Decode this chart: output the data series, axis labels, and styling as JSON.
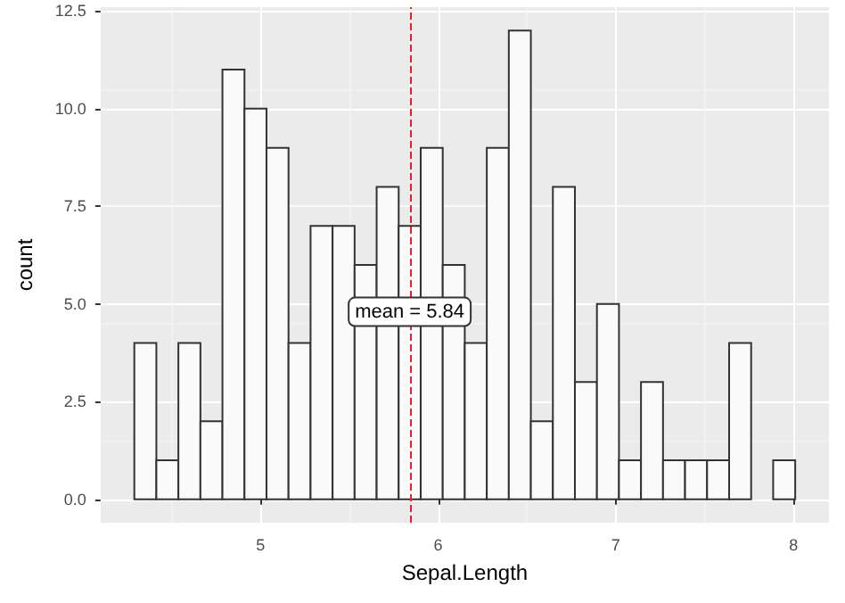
{
  "chart_data": {
    "type": "histogram",
    "xlabel": "Sepal.Length",
    "ylabel": "count",
    "bins": [
      4.29,
      4.414,
      4.538,
      4.662,
      4.786,
      4.91,
      5.034,
      5.158,
      5.282,
      5.406,
      5.53,
      5.654,
      5.778,
      5.902,
      6.026,
      6.15,
      6.274,
      6.398,
      6.522,
      6.646,
      6.77,
      6.894,
      7.018,
      7.142,
      7.266,
      7.39,
      7.514,
      7.638,
      7.762,
      7.886,
      8.01
    ],
    "values": [
      4,
      1,
      4,
      2,
      11,
      10,
      9,
      4,
      7,
      7,
      6,
      8,
      7,
      9,
      6,
      4,
      9,
      12,
      2,
      8,
      3,
      5,
      1,
      3,
      1,
      1,
      1,
      4,
      0,
      1
    ],
    "color": "#fafafa",
    "xlim": [
      4.1,
      8.2
    ],
    "xticks": [
      5,
      6,
      7,
      8
    ],
    "ylim": [
      -0.6,
      12.6
    ],
    "yticks": [
      {
        "value": 0,
        "label": "0.0"
      },
      {
        "value": 2.5,
        "label": "2.5"
      },
      {
        "value": 5,
        "label": "5.0"
      },
      {
        "value": 7.5,
        "label": "7.5"
      },
      {
        "value": 10,
        "label": "10.0"
      },
      {
        "value": 12.5,
        "label": "12.5"
      }
    ],
    "grid": true,
    "ref_lines": [
      {
        "axis": "x",
        "value": 5.84,
        "label": "mean = 5.84",
        "color": "#e8202a",
        "line_style": "dashed"
      }
    ]
  }
}
